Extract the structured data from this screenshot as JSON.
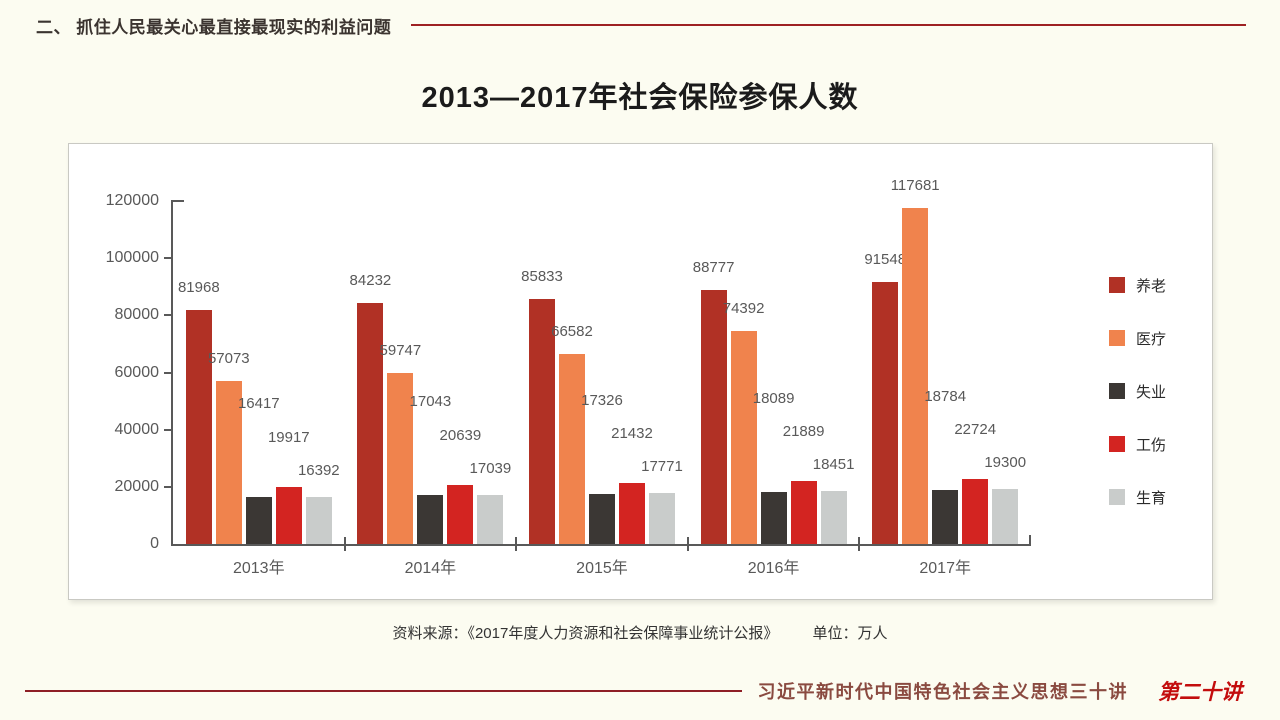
{
  "header": {
    "title": "二、 抓住人民最关心最直接最现实的利益问题"
  },
  "main": {
    "title": "2013—2017年社会保险参保人数",
    "source": "资料来源：《2017年度人力资源和社会保障事业统计公报》",
    "unit": "单位：万人"
  },
  "chart_data": {
    "type": "bar",
    "title": "2013—2017年社会保险参保人数",
    "categories": [
      "2013年",
      "2014年",
      "2015年",
      "2016年",
      "2017年"
    ],
    "series": [
      {
        "name": "养老",
        "color": "#B13125",
        "values": [
          81968,
          84232,
          85833,
          88777,
          91548
        ]
      },
      {
        "name": "医疗",
        "color": "#F0834D",
        "values": [
          57073,
          59747,
          66582,
          74392,
          117681
        ]
      },
      {
        "name": "失业",
        "color": "#3B3734",
        "values": [
          16417,
          17043,
          17326,
          18089,
          18784
        ]
      },
      {
        "name": "工伤",
        "color": "#D32421",
        "values": [
          19917,
          20639,
          21432,
          21889,
          22724
        ]
      },
      {
        "name": "生育",
        "color": "#C9CCCB",
        "values": [
          16392,
          17039,
          17771,
          18451,
          19300
        ]
      }
    ],
    "ylim": [
      0,
      120000
    ],
    "yticks": [
      0,
      20000,
      40000,
      60000,
      80000,
      100000,
      120000
    ],
    "grid": false,
    "legend_position": "right",
    "data_labels": true,
    "unit_label": "单位：万人",
    "axis_color": "#595959",
    "label_color": "#595959"
  },
  "footer": {
    "title": "习近平新时代中国特色社会主义思想三十讲",
    "lecture": "第二十讲"
  }
}
